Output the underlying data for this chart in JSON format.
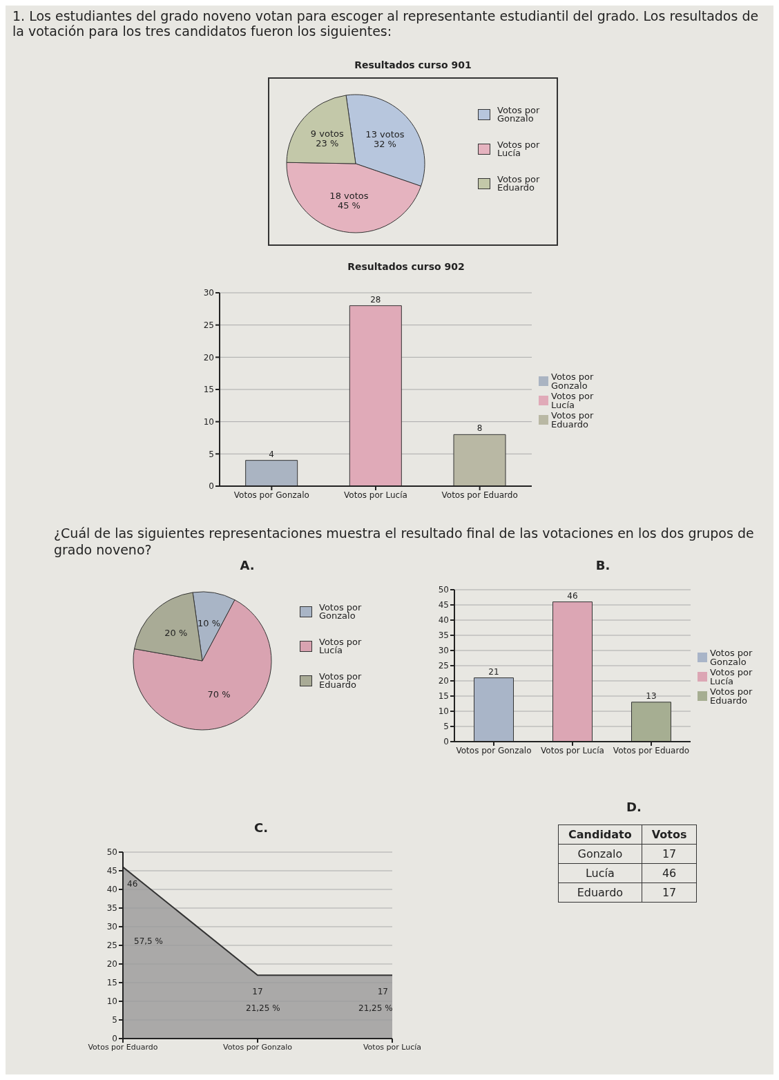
{
  "chart_data": [
    {
      "type": "pie",
      "title": "Resultados curso 901",
      "annotations": [
        "1. Los estudiantes del grado noveno votan para escoger al representante estudiantil del grado. Los resultados de la votación para los tres candidatos fueron los siguientes:"
      ],
      "categories": [
        "Votos por Gonzalo",
        "Votos por Lucía",
        "Votos por Eduardo"
      ],
      "values": [
        13,
        18,
        9
      ],
      "value_labels": [
        "13 votos\n32 %",
        "18 votos\n45 %",
        "9 votos\n23 %"
      ],
      "colors": [
        "#b7c6dd",
        "#e5b3bf",
        "#c3c8a9"
      ],
      "legend": "right"
    },
    {
      "type": "bar",
      "title": "Resultados curso 902",
      "annotations": [
        "¿Cuál de las siguientes representaciones muestra el resultado final de las votaciones en los dos grupos de grado noveno?"
      ],
      "categories": [
        "Votos por Gonzalo",
        "Votos por Lucía",
        "Votos por Eduardo"
      ],
      "series": [
        {
          "name": "Votos por Gonzalo",
          "color": "#aab4c2",
          "values": [
            4,
            null,
            null
          ]
        },
        {
          "name": "Votos por Lucía",
          "color": "#e0aab8",
          "values": [
            null,
            28,
            null
          ]
        },
        {
          "name": "Votos por Eduardo",
          "color": "#b9b8a4",
          "values": [
            null,
            null,
            8
          ]
        }
      ],
      "ylim": [
        0,
        30
      ],
      "yticks": [
        0,
        5,
        10,
        15,
        20,
        25,
        30
      ],
      "grid": "y",
      "data_labels": true,
      "legend": "right"
    },
    {
      "type": "pie",
      "title": "A.",
      "categories": [
        "Votos por Gonzalo",
        "Votos por Lucía",
        "Votos por Eduardo"
      ],
      "values": [
        10,
        70,
        20
      ],
      "value_labels": [
        "10 %",
        "70 %",
        "20 %"
      ],
      "colors": [
        "#a9b5c6",
        "#d9a3b1",
        "#a9ab96"
      ],
      "legend": "right"
    },
    {
      "type": "bar",
      "title": "B.",
      "categories": [
        "Votos por Gonzalo",
        "Votos por Lucía",
        "Votos por Eduardo"
      ],
      "series": [
        {
          "name": "Votos por Gonzalo",
          "color": "#a9b5c8",
          "values": [
            21,
            null,
            null
          ]
        },
        {
          "name": "Votos por Lucía",
          "color": "#dca6b4",
          "values": [
            null,
            46,
            null
          ]
        },
        {
          "name": "Votos por Eduardo",
          "color": "#a6ae92",
          "values": [
            null,
            null,
            13
          ]
        }
      ],
      "ylim": [
        0,
        50
      ],
      "yticks": [
        0,
        5,
        10,
        15,
        20,
        25,
        30,
        35,
        40,
        45,
        50
      ],
      "grid": "y",
      "data_labels": true,
      "legend": "right"
    },
    {
      "type": "area",
      "title": "C.",
      "categories": [
        "Votos por Eduardo",
        "Votos por Gonzalo",
        "Votos por Lucía"
      ],
      "values": [
        46,
        17,
        17
      ],
      "color": "#9a9a9a",
      "ylim": [
        0,
        50
      ],
      "yticks": [
        0,
        5,
        10,
        15,
        20,
        25,
        30,
        35,
        40,
        45,
        50
      ],
      "grid": "y",
      "data_labels": true,
      "annotations": [
        "57,5 %",
        "21,25 %",
        "21,25 %"
      ]
    },
    {
      "type": "other",
      "title": "D.",
      "xlabel": "Candidato",
      "ylabel": "Votos",
      "categories": [
        "Gonzalo",
        "Lucía",
        "Eduardo"
      ],
      "values": [
        17,
        46,
        17
      ],
      "data_labels": true
    }
  ]
}
